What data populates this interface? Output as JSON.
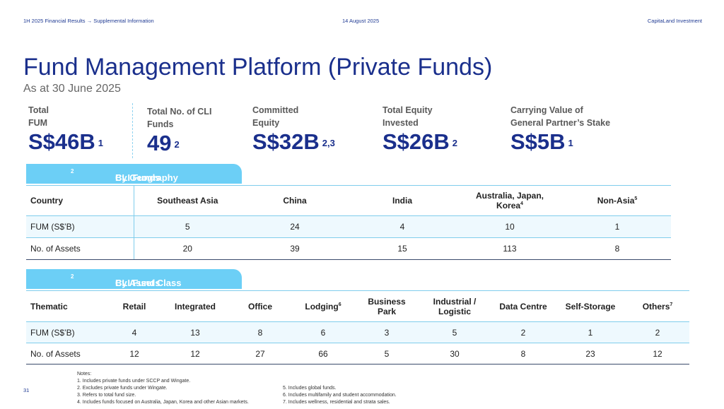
{
  "header": {
    "left": "1H 2025 Financial Results → Supplemental Information",
    "center": "14 August 2025",
    "right": "CapitaLand Investment"
  },
  "title": "Fund Management Platform (Private Funds)",
  "subtitle": "As at 30 June 2025",
  "metrics": [
    {
      "label": "Total\nFUM",
      "value": "S$46B",
      "sup": "1"
    },
    {
      "label": "Total No. of CLI\nFunds",
      "value": "49",
      "sup": "2"
    },
    {
      "label": "Committed\nEquity",
      "value": "S$32B",
      "sup": "2,3"
    },
    {
      "label": "Total Equity\nInvested",
      "value": "S$26B",
      "sup": "2"
    },
    {
      "label": "Carrying Value of\nGeneral Partner’s Stake",
      "value": "S$5B",
      "sup": "1"
    }
  ],
  "geography": {
    "tab_label": "CLI Funds",
    "tab_sup": "2",
    "tab_suffix": " By Geography",
    "head_label": "Country",
    "columns": [
      {
        "label": "Southeast Asia",
        "sup": ""
      },
      {
        "label": "China",
        "sup": ""
      },
      {
        "label": "India",
        "sup": ""
      },
      {
        "label": "Australia, Japan, Korea",
        "sup": "4"
      },
      {
        "label": "Non-Asia",
        "sup": "5"
      }
    ],
    "rows": [
      {
        "label": "FUM (S$’B)",
        "values": [
          "5",
          "24",
          "4",
          "10",
          "1"
        ]
      },
      {
        "label": "No. of Assets",
        "values": [
          "20",
          "39",
          "15",
          "113",
          "8"
        ]
      }
    ]
  },
  "asset_class": {
    "tab_label": "CLI Funds",
    "tab_sup": "2",
    "tab_suffix": " By Asset Class",
    "head_label": "Thematic",
    "columns": [
      {
        "label": "Retail",
        "sup": ""
      },
      {
        "label": "Integrated",
        "sup": ""
      },
      {
        "label": "Office",
        "sup": ""
      },
      {
        "label": "Lodging",
        "sup": "6"
      },
      {
        "label": "Business Park",
        "sup": ""
      },
      {
        "label": "Industrial / Logistic",
        "sup": ""
      },
      {
        "label": "Data Centre",
        "sup": ""
      },
      {
        "label": "Self-Storage",
        "sup": ""
      },
      {
        "label": "Others",
        "sup": "7"
      }
    ],
    "rows": [
      {
        "label": "FUM (S$’B)",
        "values": [
          "4",
          "13",
          "8",
          "6",
          "3",
          "5",
          "2",
          "1",
          "2"
        ]
      },
      {
        "label": "No. of Assets",
        "values": [
          "12",
          "12",
          "27",
          "66",
          "5",
          "30",
          "8",
          "23",
          "12"
        ]
      }
    ]
  },
  "notes": {
    "title": "Notes:",
    "col1": [
      "1.   Includes private funds under SCCP and Wingate.",
      "2.   Excludes private funds under Wingate.",
      "3.   Refers to total fund size.",
      "4.   Includes funds focused on Australia, Japan, Korea and other Asian markets."
    ],
    "col2": [
      "5.   Includes global funds.",
      "6.   Includes multifamily and student accommodation.",
      "7.   Includes wellness, residential and strata sales."
    ]
  },
  "page_number": "31"
}
